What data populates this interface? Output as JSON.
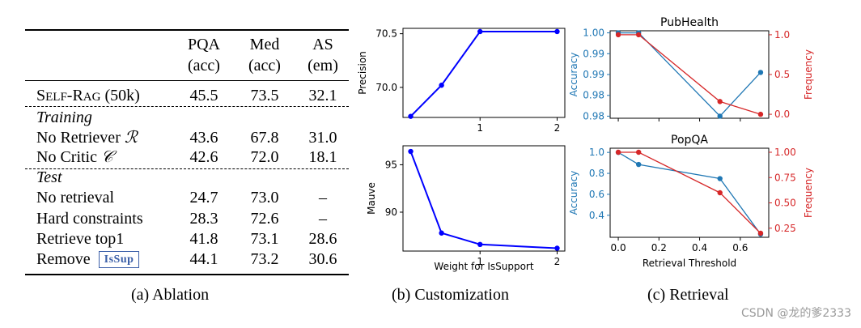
{
  "ablation": {
    "header": {
      "col1": {
        "top": "PQA",
        "bottom": "(acc)"
      },
      "col2": {
        "top": "Med",
        "bottom": "(acc)"
      },
      "col3": {
        "top": "AS",
        "bottom": "(em)"
      }
    },
    "main_row": {
      "label": "Self-Rag (50k)",
      "values": [
        "45.5",
        "73.5",
        "32.1"
      ]
    },
    "training_label": "Training",
    "training_rows": [
      {
        "label": "No Retriever",
        "math": "ℛ",
        "values": [
          "43.6",
          "67.8",
          "31.0"
        ]
      },
      {
        "label": "No Critic",
        "math": "𝒞",
        "values": [
          "42.6",
          "72.0",
          "18.1"
        ]
      }
    ],
    "test_label": "Test",
    "test_rows": [
      {
        "label": "No retrieval",
        "values": [
          "24.7",
          "73.0",
          "–"
        ]
      },
      {
        "label": "Hard constraints",
        "values": [
          "28.3",
          "72.6",
          "–"
        ]
      },
      {
        "label": "Retrieve top1",
        "values": [
          "41.8",
          "73.1",
          "28.6"
        ]
      },
      {
        "label": "Remove",
        "token": "IsSup",
        "values": [
          "44.1",
          "73.2",
          "30.6"
        ]
      }
    ],
    "caption": "(a) Ablation"
  },
  "customization": {
    "caption": "(b) Customization",
    "xlabel": "Weight for IsSupport"
  },
  "retrieval": {
    "caption": "(c) Retrieval",
    "xlabel": "Retrieval Threshold"
  },
  "watermark": "CSDN @龙的爹2333",
  "chart_data": [
    {
      "type": "line",
      "name": "precision",
      "x": [
        0.1,
        0.5,
        1,
        2
      ],
      "values": [
        69.73,
        70.02,
        70.52,
        70.52
      ],
      "ylabel": "Precision",
      "xlabel": "",
      "xlim": [
        0.0,
        2.1
      ],
      "ylim": [
        69.72,
        70.55
      ],
      "yticks": [
        "70.0",
        "70.5"
      ],
      "ytick_values": [
        70.0,
        70.5
      ],
      "xticks": [
        "1",
        "2"
      ],
      "xtick_values": [
        1,
        2
      ],
      "color": "#0000ff"
    },
    {
      "type": "line",
      "name": "mauve",
      "x": [
        0.1,
        0.5,
        1,
        2
      ],
      "values": [
        96.4,
        87.8,
        86.6,
        86.2
      ],
      "ylabel": "Mauve",
      "xlabel": "Weight for IsSupport",
      "xlim": [
        0.0,
        2.1
      ],
      "ylim": [
        85.9,
        97.0
      ],
      "yticks": [
        "90",
        "95"
      ],
      "ytick_values": [
        90,
        95
      ],
      "xticks": [
        "1",
        "2"
      ],
      "xtick_values": [
        1,
        2
      ],
      "color": "#0000ff"
    },
    {
      "type": "line",
      "title": "PubHealth",
      "x": [
        0.0,
        0.1,
        0.5,
        0.7
      ],
      "series": [
        {
          "name": "Accuracy",
          "values": [
            1.0,
            1.0,
            0.98,
            0.9905
          ],
          "color": "#1f77b4",
          "axis": "left"
        },
        {
          "name": "Frequency",
          "values": [
            1.0,
            1.0,
            0.16,
            0.0
          ],
          "color": "#d62728",
          "axis": "right"
        }
      ],
      "ylabel": "Accuracy",
      "y2label": "Frequency",
      "xlim": [
        -0.04,
        0.74
      ],
      "ylim": [
        0.9795,
        1.0005
      ],
      "y2lim": [
        -0.05,
        1.05
      ],
      "yticks": [
        "0.98",
        "0.98",
        "0.99",
        "0.99",
        "1.00"
      ],
      "ytick_values": [
        0.98,
        0.985,
        0.99,
        0.995,
        1.0
      ],
      "y2ticks": [
        "0.0",
        "0.5",
        "1.0"
      ],
      "y2tick_values": [
        0.0,
        0.5,
        1.0
      ],
      "xticks": [
        "0.0",
        "0.2",
        "0.4",
        "0.6"
      ],
      "xtick_values": [
        0.0,
        0.2,
        0.4,
        0.6
      ]
    },
    {
      "type": "line",
      "title": "PopQA",
      "x": [
        0.0,
        0.1,
        0.5,
        0.7
      ],
      "series": [
        {
          "name": "Accuracy",
          "values": [
            1.0,
            0.885,
            0.75,
            0.22
          ],
          "color": "#1f77b4",
          "axis": "left"
        },
        {
          "name": "Frequency",
          "values": [
            1.0,
            1.0,
            0.6,
            0.2
          ],
          "color": "#d62728",
          "axis": "right"
        }
      ],
      "ylabel": "Accuracy",
      "y2label": "Frequency",
      "xlabel": "Retrieval Threshold",
      "xlim": [
        -0.04,
        0.74
      ],
      "ylim": [
        0.19,
        1.04
      ],
      "y2lim": [
        0.16,
        1.04
      ],
      "yticks": [
        "0.4",
        "0.6",
        "0.8",
        "1.0"
      ],
      "ytick_values": [
        0.4,
        0.6,
        0.8,
        1.0
      ],
      "y2ticks": [
        "0.25",
        "0.50",
        "0.75",
        "1.00"
      ],
      "y2tick_values": [
        0.25,
        0.5,
        0.75,
        1.0
      ],
      "xticks": [
        "0.0",
        "0.2",
        "0.4",
        "0.6"
      ],
      "xtick_values": [
        0.0,
        0.2,
        0.4,
        0.6
      ]
    }
  ]
}
